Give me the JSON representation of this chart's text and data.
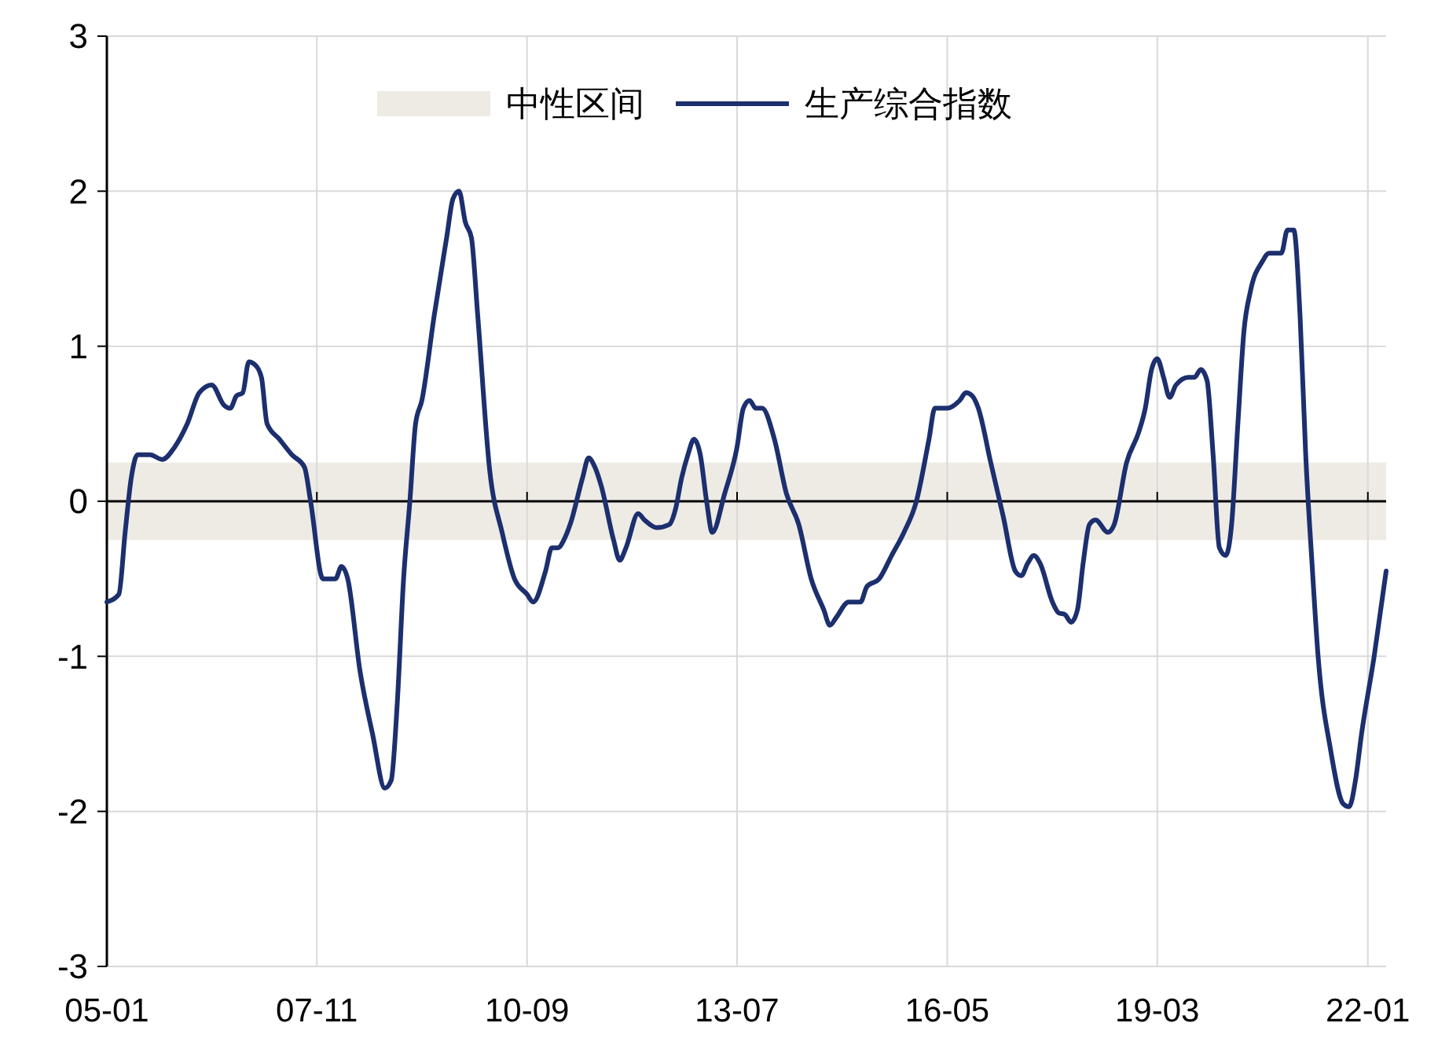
{
  "chart_data": {
    "type": "line",
    "xlim": [
      "2005-01",
      "2022-04"
    ],
    "ylim": [
      -3,
      3
    ],
    "xticks": [
      {
        "value": "2005-01",
        "label": "05-01"
      },
      {
        "value": "2007-11",
        "label": "07-11"
      },
      {
        "value": "2010-09",
        "label": "10-09"
      },
      {
        "value": "2013-07",
        "label": "13-07"
      },
      {
        "value": "2016-05",
        "label": "16-05"
      },
      {
        "value": "2019-03",
        "label": "19-03"
      },
      {
        "value": "2022-01",
        "label": "22-01"
      }
    ],
    "yticks": [
      -3,
      -2,
      -1,
      0,
      1,
      2,
      3
    ],
    "grid": true,
    "legend": "top",
    "bands": [
      {
        "axis": "y",
        "from": -0.25,
        "to": 0.25,
        "label": "中性区间",
        "color": "#eeebe5"
      }
    ],
    "x": [
      "2005-01",
      "2005-03",
      "2005-04",
      "2005-05",
      "2005-06",
      "2005-08",
      "2005-10",
      "2005-12",
      "2006-02",
      "2006-04",
      "2006-06",
      "2006-08",
      "2006-09",
      "2006-10",
      "2006-11",
      "2006-12",
      "2007-01",
      "2007-02",
      "2007-03",
      "2007-05",
      "2007-07",
      "2007-09",
      "2007-10",
      "2007-12",
      "2008-02",
      "2008-03",
      "2008-04",
      "2008-06",
      "2008-08",
      "2008-10",
      "2008-11",
      "2008-12",
      "2009-01",
      "2009-02",
      "2009-03",
      "2009-04",
      "2009-06",
      "2009-08",
      "2009-09",
      "2009-10",
      "2009-11",
      "2009-12",
      "2010-01",
      "2010-03",
      "2010-05",
      "2010-07",
      "2010-09",
      "2010-10",
      "2010-12",
      "2011-01",
      "2011-02",
      "2011-03",
      "2011-04",
      "2011-06",
      "2011-07",
      "2011-08",
      "2011-09",
      "2011-11",
      "2011-12",
      "2012-01",
      "2012-03",
      "2012-04",
      "2012-06",
      "2012-08",
      "2012-09",
      "2012-10",
      "2012-11",
      "2012-12",
      "2013-01",
      "2013-02",
      "2013-03",
      "2013-05",
      "2013-07",
      "2013-08",
      "2013-09",
      "2013-10",
      "2013-11",
      "2014-01",
      "2014-03",
      "2014-05",
      "2014-07",
      "2014-09",
      "2014-10",
      "2014-11",
      "2015-01",
      "2015-03",
      "2015-04",
      "2015-06",
      "2015-08",
      "2015-10",
      "2015-12",
      "2016-02",
      "2016-03",
      "2016-05",
      "2016-07",
      "2016-08",
      "2016-09",
      "2016-10",
      "2016-12",
      "2017-02",
      "2017-04",
      "2017-05",
      "2017-06",
      "2017-07",
      "2017-08",
      "2017-10",
      "2017-11",
      "2017-12",
      "2018-01",
      "2018-02",
      "2018-03",
      "2018-04",
      "2018-05",
      "2018-07",
      "2018-08",
      "2018-10",
      "2018-12",
      "2019-01",
      "2019-02",
      "2019-03",
      "2019-04",
      "2019-05",
      "2019-06",
      "2019-08",
      "2019-09",
      "2019-10",
      "2019-11",
      "2019-12",
      "2020-01",
      "2020-02",
      "2020-03",
      "2020-04",
      "2020-05",
      "2020-06",
      "2020-08",
      "2020-09",
      "2020-11",
      "2020-12",
      "2021-01",
      "2021-02",
      "2021-03",
      "2021-04",
      "2021-05",
      "2021-07",
      "2021-09",
      "2021-10",
      "2021-11",
      "2021-12",
      "2022-02",
      "2022-04"
    ],
    "series": [
      {
        "name": "生产综合指数",
        "color": "#1c2f6e",
        "values": [
          -0.65,
          -0.6,
          -0.2,
          0.15,
          0.3,
          0.3,
          0.27,
          0.35,
          0.5,
          0.7,
          0.75,
          0.62,
          0.6,
          0.68,
          0.7,
          0.9,
          0.88,
          0.8,
          0.5,
          0.4,
          0.3,
          0.22,
          0.0,
          -0.5,
          -0.5,
          -0.42,
          -0.5,
          -1.1,
          -1.5,
          -1.85,
          -1.8,
          -1.3,
          -0.5,
          0.0,
          0.5,
          0.65,
          1.2,
          1.7,
          1.95,
          2.0,
          1.8,
          1.7,
          1.2,
          0.2,
          -0.2,
          -0.5,
          -0.6,
          -0.65,
          -0.45,
          -0.3,
          -0.3,
          -0.25,
          -0.15,
          0.15,
          0.28,
          0.22,
          0.1,
          -0.25,
          -0.38,
          -0.3,
          -0.08,
          -0.12,
          -0.17,
          -0.15,
          -0.05,
          0.15,
          0.3,
          0.4,
          0.3,
          0.0,
          -0.2,
          0.05,
          0.35,
          0.6,
          0.65,
          0.6,
          0.6,
          0.4,
          0.05,
          -0.15,
          -0.5,
          -0.7,
          -0.8,
          -0.75,
          -0.65,
          -0.65,
          -0.55,
          -0.5,
          -0.35,
          -0.2,
          0.0,
          0.4,
          0.6,
          0.6,
          0.65,
          0.7,
          0.68,
          0.6,
          0.25,
          -0.1,
          -0.45,
          -0.48,
          -0.4,
          -0.35,
          -0.4,
          -0.65,
          -0.72,
          -0.73,
          -0.78,
          -0.7,
          -0.4,
          -0.15,
          -0.12,
          -0.2,
          -0.15,
          0.25,
          0.45,
          0.6,
          0.85,
          0.92,
          0.8,
          0.67,
          0.75,
          0.8,
          0.8,
          0.85,
          0.78,
          0.3,
          -0.3,
          -0.35,
          -0.15,
          0.5,
          1.1,
          1.35,
          1.55,
          1.6,
          1.6,
          1.75,
          1.75,
          1.2,
          0.3,
          -0.4,
          -1.0,
          -1.6,
          -1.95,
          -1.97,
          -1.8,
          -1.5,
          -1.0,
          -0.45
        ]
      }
    ]
  }
}
